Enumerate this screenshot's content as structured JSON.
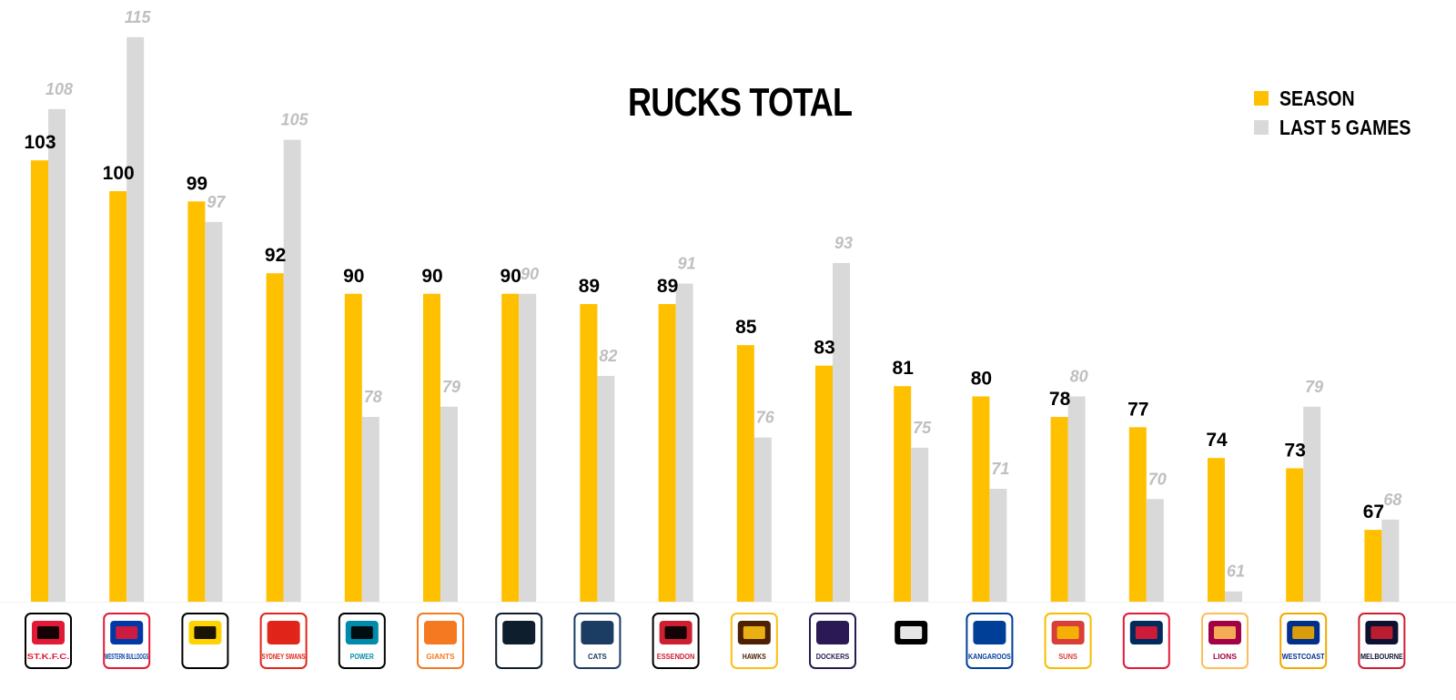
{
  "chart_data": {
    "type": "bar",
    "title": "RUCKS TOTAL",
    "xlabel": "",
    "ylabel": "",
    "ylim": [
      60,
      118
    ],
    "grid": false,
    "legend_position": "top-right",
    "colors": {
      "season": "#FFC000",
      "last5": "#D9D9D9",
      "season_label": "#000000",
      "last5_label": "#BFBFBF"
    },
    "categories": [
      "St Kilda",
      "Western Bulldogs",
      "Richmond",
      "Sydney Swans",
      "Port Adelaide",
      "GWS Giants",
      "Carlton",
      "Geelong Cats",
      "Essendon",
      "Hawthorn",
      "Fremantle",
      "Collingwood",
      "North Melbourne",
      "Gold Coast Suns",
      "Adelaide Crows",
      "Brisbane Lions",
      "West Coast",
      "Melbourne"
    ],
    "series": [
      {
        "name": "SEASON",
        "values": [
          103,
          100,
          99,
          92,
          90,
          90,
          90,
          89,
          89,
          85,
          83,
          81,
          80,
          78,
          77,
          74,
          73,
          67
        ]
      },
      {
        "name": "LAST 5 GAMES",
        "values": [
          108,
          115,
          97,
          105,
          78,
          79,
          90,
          82,
          91,
          76,
          93,
          75,
          71,
          80,
          70,
          61,
          79,
          68
        ]
      }
    ]
  },
  "logos": [
    {
      "text": "ST.K.F.C.",
      "icon": "st-kilda-logo-icon",
      "fg": "#E21937",
      "bg": "#000000"
    },
    {
      "text": "WESTERN BULLDOGS",
      "icon": "bulldogs-logo-icon",
      "fg": "#0039A6",
      "bg": "#E21937"
    },
    {
      "text": "",
      "icon": "tigers-logo-icon",
      "fg": "#FFD200",
      "bg": "#000000"
    },
    {
      "text": "SYDNEY SWANS",
      "icon": "swans-logo-icon",
      "fg": "#E1251B",
      "bg": "#E1251B"
    },
    {
      "text": "POWER",
      "icon": "power-logo-icon",
      "fg": "#008AAB",
      "bg": "#000000"
    },
    {
      "text": "GIANTS",
      "icon": "giants-logo-icon",
      "fg": "#F47920",
      "bg": "#F47920"
    },
    {
      "text": "",
      "icon": "carlton-logo-icon",
      "fg": "#0E1E2D",
      "bg": "#0E1E2D"
    },
    {
      "text": "CATS",
      "icon": "geelong-logo-icon",
      "fg": "#1C3C63",
      "bg": "#1C3C63"
    },
    {
      "text": "ESSENDON",
      "icon": "essendon-logo-icon",
      "fg": "#CC2031",
      "bg": "#000000"
    },
    {
      "text": "HAWKS",
      "icon": "hawks-logo-icon",
      "fg": "#4D2004",
      "bg": "#FBBF15"
    },
    {
      "text": "DOCKERS",
      "icon": "dockers-logo-icon",
      "fg": "#2A1A54",
      "bg": "#2A1A54"
    },
    {
      "text": "",
      "icon": "magpies-logo-icon",
      "fg": "#000000",
      "bg": "#FFFFFF"
    },
    {
      "text": "KANGAROOS",
      "icon": "kangaroos-logo-icon",
      "fg": "#003F98",
      "bg": "#003F98"
    },
    {
      "text": "SUNS",
      "icon": "suns-logo-icon",
      "fg": "#D93E39",
      "bg": "#F6BD00"
    },
    {
      "text": "",
      "icon": "crows-logo-icon",
      "fg": "#002B5C",
      "bg": "#E21937"
    },
    {
      "text": "LIONS",
      "icon": "lions-logo-icon",
      "fg": "#A30046",
      "bg": "#FDBE57"
    },
    {
      "text": "WESTCOAST",
      "icon": "eagles-logo-icon",
      "fg": "#003087",
      "bg": "#F2A900"
    },
    {
      "text": "MELBOURNE",
      "icon": "demons-logo-icon",
      "fg": "#0F1131",
      "bg": "#CC2031"
    }
  ]
}
